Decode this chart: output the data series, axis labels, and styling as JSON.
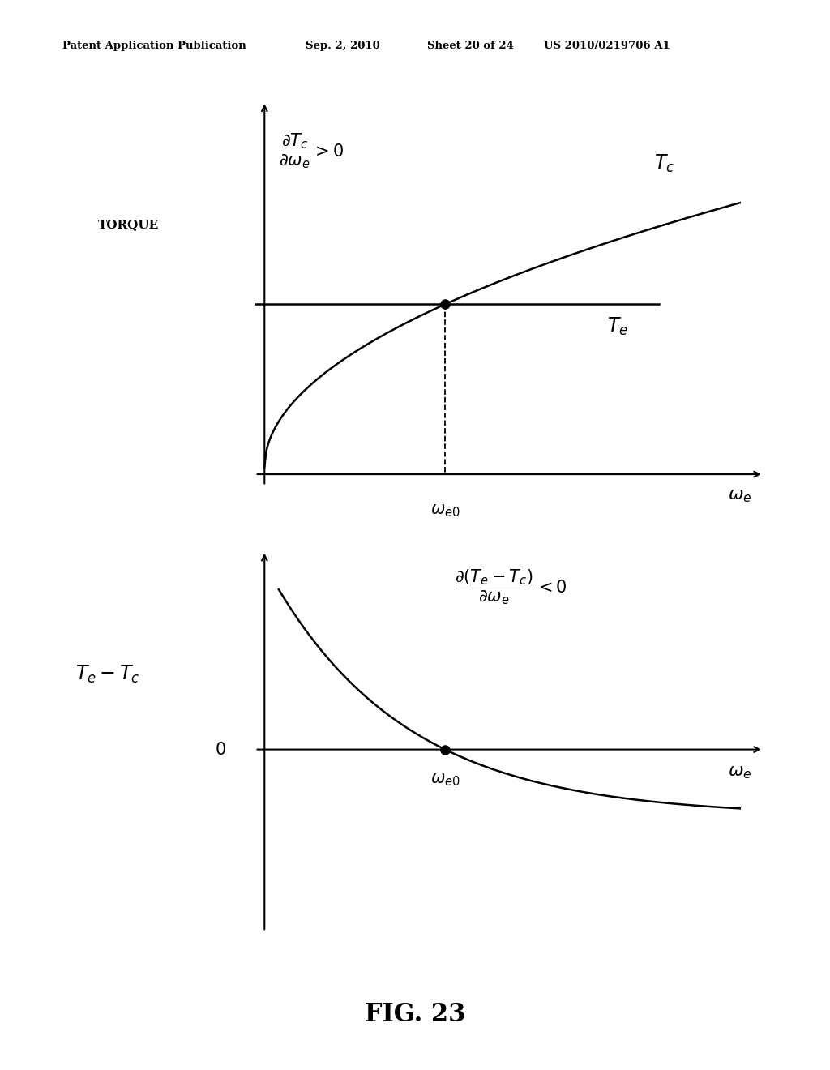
{
  "bg_color": "#ffffff",
  "header_text": "Patent Application Publication",
  "header_date": "Sep. 2, 2010",
  "header_sheet": "Sheet 20 of 24",
  "header_patent": "US 2010/0219706 A1",
  "fig_label": "FIG. 23"
}
